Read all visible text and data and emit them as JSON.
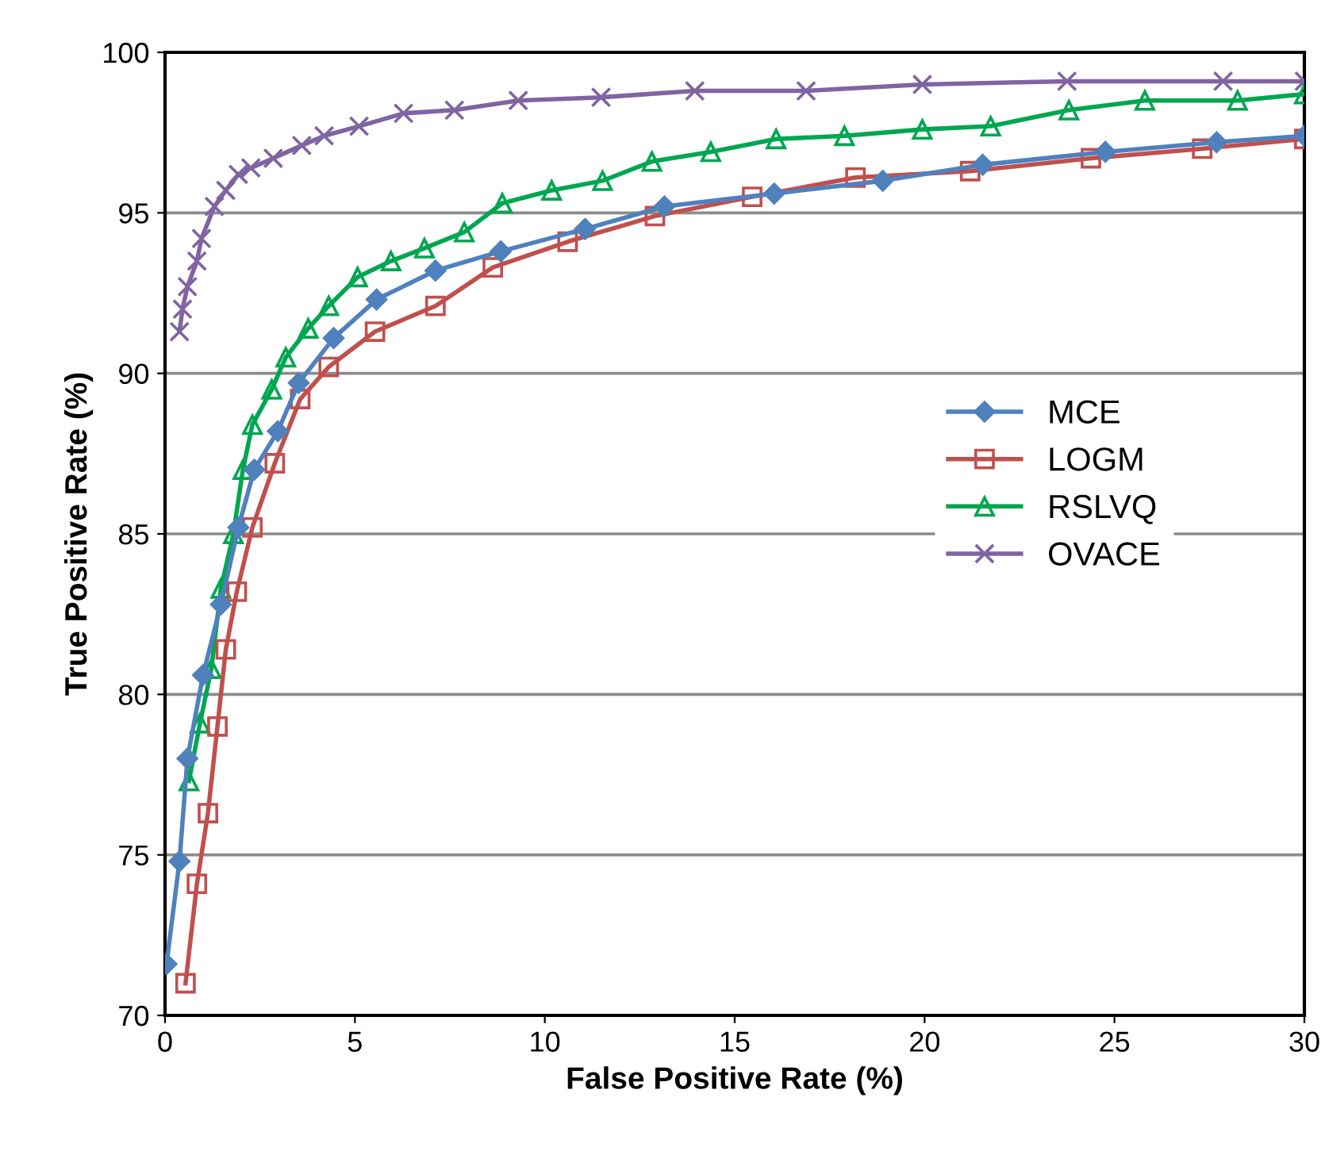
{
  "chart_data": {
    "type": "line",
    "xlabel": "False Positive Rate (%)",
    "ylabel": "True Positive Rate (%)",
    "xlim": [
      0,
      30
    ],
    "ylim": [
      70,
      100
    ],
    "xticks": [
      0,
      5,
      10,
      15,
      20,
      25,
      30
    ],
    "yticks": [
      70,
      75,
      80,
      85,
      90,
      95,
      100
    ],
    "grid": "y",
    "legend": "center right",
    "series": [
      {
        "name": "MCE",
        "color": "#4f81bd",
        "marker": "diamond",
        "x": [
          0.04,
          0.38,
          0.59,
          1.0,
          1.47,
          1.93,
          2.35,
          2.97,
          3.52,
          4.44,
          5.57,
          7.12,
          8.84,
          11.06,
          13.15,
          16.04,
          18.9,
          21.53,
          24.76,
          27.69,
          30
        ],
        "values": [
          71.6,
          74.8,
          78.0,
          80.6,
          82.8,
          85.2,
          87.0,
          88.2,
          89.7,
          91.1,
          92.3,
          93.2,
          93.8,
          94.5,
          95.2,
          95.6,
          96.0,
          96.5,
          96.9,
          97.2,
          97.4
        ]
      },
      {
        "name": "LOGM",
        "color": "#c0504d",
        "marker": "square",
        "x": [
          0.54,
          0.84,
          1.13,
          1.38,
          1.6,
          1.89,
          2.3,
          2.89,
          3.56,
          4.31,
          5.53,
          7.12,
          8.63,
          10.6,
          12.9,
          15.46,
          18.18,
          21.2,
          24.38,
          27.31,
          30
        ],
        "values": [
          71.0,
          74.1,
          76.3,
          79.0,
          81.4,
          83.2,
          85.2,
          87.2,
          89.2,
          90.2,
          91.3,
          92.1,
          93.3,
          94.1,
          94.9,
          95.5,
          96.1,
          96.3,
          96.7,
          97.0,
          97.3
        ]
      },
      {
        "name": "RSLVQ",
        "color": "#00a650",
        "marker": "triangle",
        "x": [
          0.63,
          0.92,
          1.22,
          1.47,
          1.8,
          2.05,
          2.3,
          2.81,
          3.18,
          3.77,
          4.31,
          5.07,
          5.95,
          6.83,
          7.88,
          8.88,
          10.18,
          11.52,
          12.82,
          14.37,
          16.09,
          17.89,
          19.94,
          21.74,
          23.8,
          25.8,
          28.24,
          30
        ],
        "values": [
          77.3,
          79.1,
          80.8,
          83.3,
          85.0,
          87.0,
          88.4,
          89.5,
          90.5,
          91.4,
          92.1,
          93.0,
          93.5,
          93.9,
          94.4,
          95.3,
          95.7,
          96.0,
          96.6,
          96.9,
          97.3,
          97.4,
          97.6,
          97.7,
          98.2,
          98.5,
          98.5,
          98.7
        ]
      },
      {
        "name": "OVACE",
        "color": "#8064a2",
        "marker": "cross",
        "x": [
          0.38,
          0.46,
          0.59,
          0.84,
          0.96,
          1.3,
          1.6,
          1.93,
          2.26,
          2.85,
          3.6,
          4.19,
          5.11,
          6.28,
          7.62,
          9.3,
          11.48,
          13.95,
          16.88,
          19.94,
          23.75,
          27.86,
          30
        ],
        "values": [
          91.3,
          92.0,
          92.7,
          93.5,
          94.2,
          95.2,
          95.7,
          96.2,
          96.4,
          96.7,
          97.1,
          97.4,
          97.7,
          98.1,
          98.2,
          98.5,
          98.6,
          98.8,
          98.8,
          99.0,
          99.1,
          99.1,
          99.1
        ]
      }
    ]
  }
}
